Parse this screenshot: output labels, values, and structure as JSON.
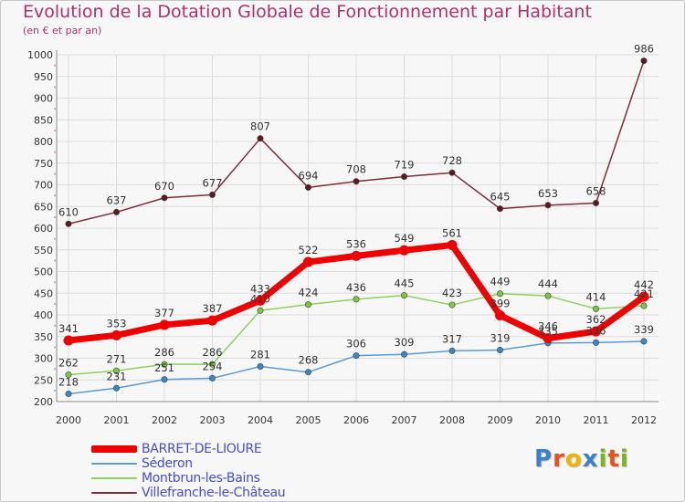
{
  "title": "Evolution de la Dotation Globale de Fonctionnement par Habitant",
  "subtitle": "(en € et par an)",
  "logo": {
    "text": "Proxiti",
    "letter_colors": [
      "#3a7fd0",
      "#e8501c",
      "#f0b400",
      "#3a7fd0",
      "#7ab51d",
      "#e8501c",
      "#7ab51d"
    ]
  },
  "chart_data": {
    "type": "line",
    "title": "Evolution de la Dotation Globale de Fonctionnement par Habitant",
    "ylabel": "(en € et par an)",
    "xlabel": "",
    "categories": [
      "2000",
      "2001",
      "2002",
      "2003",
      "2004",
      "2005",
      "2006",
      "2007",
      "2008",
      "2009",
      "2010",
      "2011",
      "2012"
    ],
    "ylim": [
      200,
      1000
    ],
    "yticks": [
      "200",
      "250",
      "300",
      "350",
      "400",
      "450",
      "500",
      "550",
      "600",
      "650",
      "700",
      "750",
      "800",
      "850",
      "900",
      "950",
      "1000"
    ],
    "grid": true,
    "legend_position": "bottom-left",
    "series": [
      {
        "name": "Villefranche-le-Château",
        "color": "#7a2f3a",
        "marker_color": "#5a1a22",
        "emphasis": false,
        "values": [
          610,
          637,
          670,
          677,
          807,
          694,
          708,
          719,
          728,
          645,
          653,
          658,
          986
        ],
        "labels": [
          "610",
          "637",
          "670",
          "677",
          "807",
          "694",
          "708",
          "719",
          "728",
          "645",
          "653",
          "658",
          "986"
        ]
      },
      {
        "name": "Montbrun-les-Bains",
        "color": "#8fd060",
        "marker_color": "#7ac840",
        "emphasis": false,
        "values": [
          262,
          271,
          286,
          286,
          410,
          424,
          436,
          445,
          423,
          449,
          444,
          414,
          421
        ],
        "labels": [
          "262",
          "271",
          "286",
          "286",
          "410",
          "424",
          "436",
          "445",
          "423",
          "449",
          "444",
          "414",
          "421"
        ]
      },
      {
        "name": "Séderon",
        "color": "#5b9bd0",
        "marker_color": "#3a86c8",
        "emphasis": false,
        "values": [
          218,
          231,
          251,
          254,
          281,
          268,
          306,
          309,
          317,
          319,
          335,
          336,
          339
        ],
        "labels": [
          "218",
          "231",
          "251",
          "254",
          "281",
          "268",
          "306",
          "309",
          "317",
          "319",
          "335",
          "336",
          "339"
        ]
      },
      {
        "name": "BARRET-DE-LIOURE",
        "color": "#ee0000",
        "marker_color": "#ee0000",
        "emphasis": true,
        "values": [
          341,
          353,
          377,
          387,
          433,
          522,
          536,
          549,
          561,
          399,
          346,
          362,
          442
        ],
        "labels": [
          "341",
          "353",
          "377",
          "387",
          "433",
          "522",
          "536",
          "549",
          "561",
          "399",
          "346",
          "362",
          "442"
        ]
      }
    ],
    "legend": [
      {
        "name": "BARRET-DE-LIOURE",
        "color": "#ee0000",
        "thick": true
      },
      {
        "name": "Séderon",
        "color": "#5b9bd0",
        "thick": false
      },
      {
        "name": "Montbrun-les-Bains",
        "color": "#8fd060",
        "thick": false
      },
      {
        "name": "Villefranche-le-Château",
        "color": "#7a2f3a",
        "thick": false
      }
    ]
  }
}
